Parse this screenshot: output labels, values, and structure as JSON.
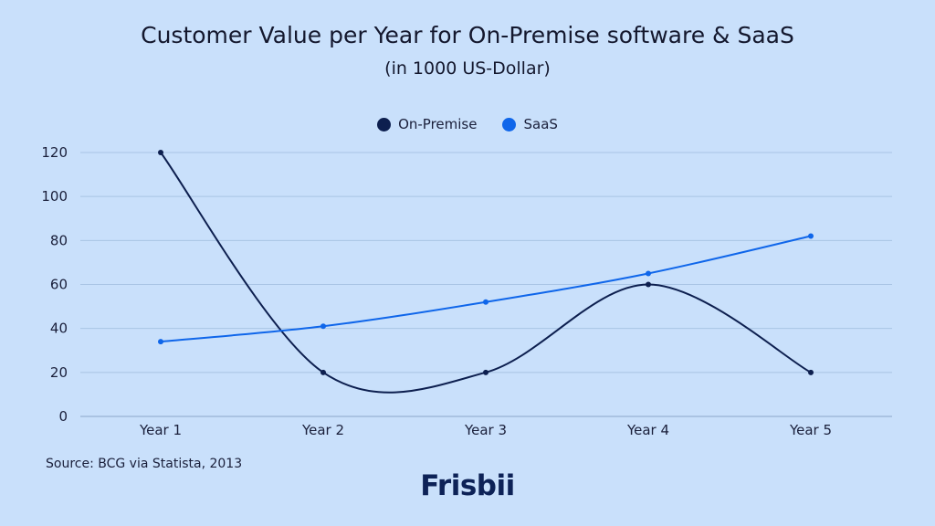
{
  "chart_data": {
    "type": "line",
    "title": "Customer Value per Year for On-Premise software & SaaS",
    "subtitle": "(in 1000 US-Dollar)",
    "categories": [
      "Year 1",
      "Year 2",
      "Year 3",
      "Year 4",
      "Year 5"
    ],
    "series": [
      {
        "name": "On-Premise",
        "values": [
          120,
          20,
          20,
          60,
          20
        ],
        "color": "#0d1f4f"
      },
      {
        "name": "SaaS",
        "values": [
          34,
          41,
          52,
          65,
          82
        ],
        "color": "#0f66ea"
      }
    ],
    "yticks": [
      "0",
      "20",
      "40",
      "60",
      "80",
      "100",
      "120"
    ],
    "ylim": [
      0,
      120
    ],
    "grid": true,
    "legend_position": "top-center",
    "smooth": true
  },
  "source": "Source: BCG via Statista, 2013",
  "logo": "Frisbii"
}
